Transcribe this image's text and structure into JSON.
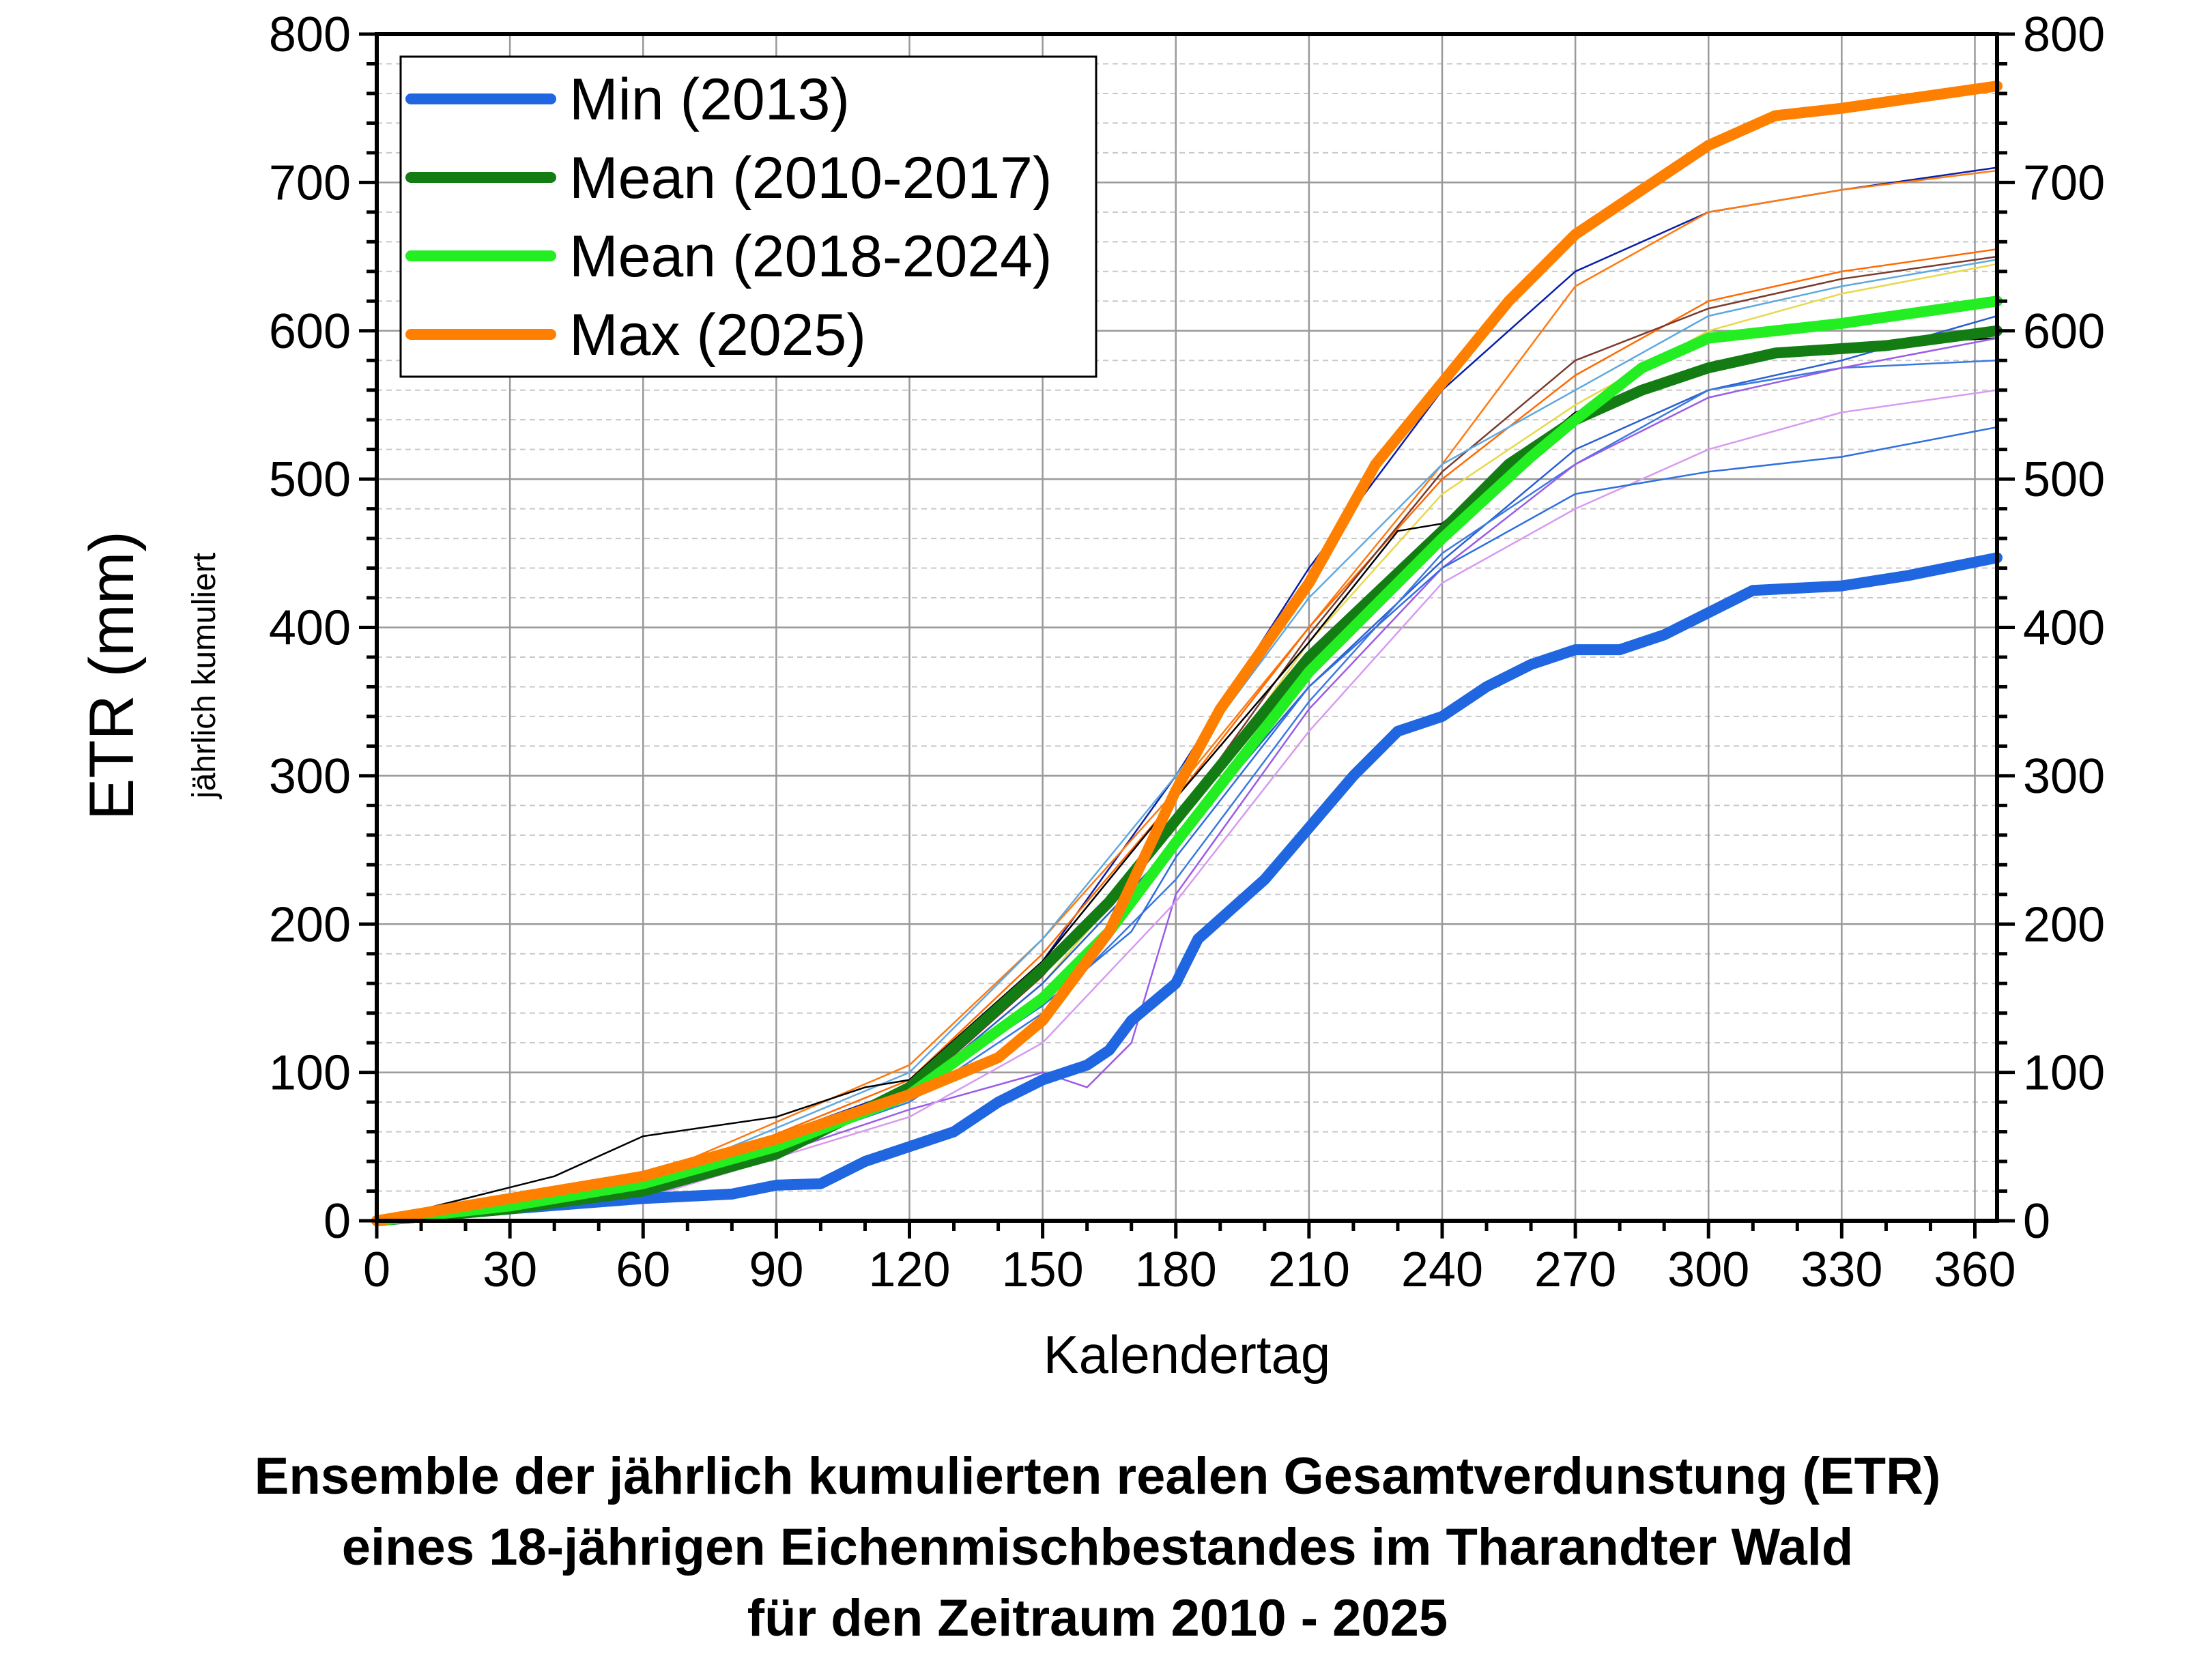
{
  "chart_data": {
    "type": "line",
    "title_lines": [
      "Ensemble der jährlich kumulierten realen Gesamtverdunstung (ETR)",
      "eines 18-jährigen Eichenmischbestandes im Tharandter Wald",
      "für den Zeitraum 2010 - 2025"
    ],
    "xlabel": "Kalendertag",
    "ylabel": "ETR (mm)",
    "ylabel_secondary": "jährlich kumuliert",
    "xlim": [
      0,
      365
    ],
    "ylim": [
      0,
      800
    ],
    "xticks": [
      0,
      30,
      60,
      90,
      120,
      150,
      180,
      210,
      240,
      270,
      300,
      330,
      360
    ],
    "yticks": [
      0,
      100,
      200,
      300,
      400,
      500,
      600,
      700,
      800
    ],
    "right_axis_labels": true,
    "grid": true,
    "legend_position": "top-left",
    "series": [
      {
        "name": "Min (2013)",
        "color": "#1f66e0",
        "highlight": true,
        "x": [
          0,
          30,
          60,
          80,
          90,
          100,
          110,
          120,
          130,
          140,
          150,
          160,
          165,
          170,
          180,
          185,
          200,
          210,
          220,
          230,
          240,
          250,
          260,
          270,
          280,
          290,
          300,
          310,
          330,
          345,
          365
        ],
        "y": [
          0,
          8,
          15,
          18,
          24,
          25,
          40,
          50,
          60,
          80,
          95,
          105,
          115,
          135,
          160,
          190,
          230,
          265,
          300,
          330,
          340,
          360,
          375,
          385,
          385,
          395,
          410,
          425,
          428,
          435,
          447
        ]
      },
      {
        "name": "Mean (2010-2017)",
        "color": "#137d13",
        "highlight": true,
        "x": [
          0,
          30,
          60,
          90,
          120,
          150,
          165,
          180,
          210,
          240,
          255,
          270,
          285,
          300,
          315,
          340,
          365
        ],
        "y": [
          0,
          8,
          20,
          45,
          90,
          170,
          215,
          270,
          380,
          465,
          510,
          540,
          560,
          575,
          585,
          590,
          600
        ]
      },
      {
        "name": "Mean (2018-2024)",
        "color": "#22ee22",
        "highlight": true,
        "x": [
          0,
          30,
          60,
          90,
          120,
          150,
          165,
          180,
          210,
          240,
          260,
          270,
          285,
          300,
          330,
          365
        ],
        "y": [
          0,
          10,
          25,
          50,
          85,
          150,
          195,
          255,
          370,
          460,
          515,
          540,
          575,
          595,
          605,
          620
        ]
      },
      {
        "name": "Max (2025)",
        "color": "#ff8000",
        "highlight": true,
        "x": [
          0,
          30,
          60,
          90,
          120,
          140,
          150,
          165,
          180,
          190,
          210,
          225,
          240,
          255,
          270,
          285,
          300,
          315,
          330,
          365
        ],
        "y": [
          0,
          15,
          30,
          55,
          85,
          110,
          135,
          195,
          290,
          345,
          430,
          510,
          565,
          620,
          665,
          695,
          725,
          745,
          750,
          765
        ]
      },
      {
        "color": "#0a1fa8",
        "x": [
          0,
          60,
          120,
          150,
          180,
          210,
          240,
          270,
          300,
          330,
          365
        ],
        "y": [
          0,
          25,
          90,
          175,
          300,
          440,
          560,
          640,
          680,
          695,
          710
        ]
      },
      {
        "color": "#ff7a10",
        "x": [
          0,
          60,
          120,
          150,
          180,
          210,
          240,
          270,
          300,
          330,
          365
        ],
        "y": [
          0,
          28,
          105,
          190,
          290,
          400,
          510,
          630,
          680,
          695,
          708
        ]
      },
      {
        "color": "#ff6a00",
        "x": [
          0,
          60,
          120,
          150,
          180,
          210,
          240,
          270,
          300,
          330,
          365
        ],
        "y": [
          0,
          22,
          95,
          180,
          285,
          400,
          500,
          570,
          620,
          640,
          655
        ]
      },
      {
        "color": "#7a3b2e",
        "x": [
          0,
          60,
          120,
          150,
          180,
          210,
          240,
          270,
          300,
          330,
          365
        ],
        "y": [
          0,
          20,
          85,
          165,
          270,
          395,
          505,
          580,
          615,
          635,
          650
        ]
      },
      {
        "color": "#5ea8e0",
        "x": [
          0,
          60,
          120,
          150,
          180,
          210,
          240,
          270,
          300,
          330,
          365
        ],
        "y": [
          0,
          25,
          100,
          190,
          300,
          420,
          510,
          560,
          610,
          630,
          648
        ]
      },
      {
        "color": "#e8d84a",
        "x": [
          0,
          60,
          120,
          150,
          180,
          210,
          240,
          270,
          300,
          330,
          365
        ],
        "y": [
          0,
          20,
          85,
          160,
          265,
          390,
          490,
          550,
          600,
          625,
          645
        ]
      },
      {
        "color": "#000000",
        "x": [
          0,
          40,
          60,
          90,
          110,
          120,
          150,
          180,
          210,
          230,
          240,
          270,
          300,
          330,
          365
        ],
        "y": [
          0,
          30,
          57,
          70,
          90,
          95,
          175,
          285,
          390,
          465,
          470,
          545,
          575,
          590,
          595
        ]
      },
      {
        "color": "#2a5fd0",
        "x": [
          0,
          60,
          120,
          150,
          180,
          210,
          240,
          270,
          300,
          330,
          365
        ],
        "y": [
          0,
          20,
          85,
          160,
          255,
          360,
          445,
          520,
          560,
          580,
          610
        ]
      },
      {
        "color": "#3a7ae0",
        "x": [
          0,
          60,
          120,
          150,
          180,
          210,
          240,
          270,
          300,
          330,
          365
        ],
        "y": [
          0,
          18,
          80,
          140,
          230,
          350,
          450,
          510,
          560,
          575,
          580
        ]
      },
      {
        "color": "#9a5ce8",
        "x": [
          0,
          60,
          120,
          150,
          160,
          170,
          180,
          210,
          240,
          270,
          300,
          330,
          365
        ],
        "y": [
          0,
          15,
          75,
          100,
          90,
          120,
          220,
          345,
          440,
          510,
          555,
          575,
          595
        ]
      },
      {
        "color": "#d79af0",
        "x": [
          0,
          60,
          120,
          150,
          180,
          210,
          240,
          270,
          300,
          330,
          365
        ],
        "y": [
          0,
          15,
          70,
          120,
          215,
          330,
          430,
          480,
          520,
          545,
          560
        ]
      },
      {
        "color": "#2f6fe0",
        "x": [
          0,
          60,
          120,
          150,
          170,
          180,
          210,
          240,
          270,
          300,
          330,
          365
        ],
        "y": [
          0,
          20,
          85,
          145,
          195,
          245,
          360,
          440,
          490,
          505,
          515,
          535
        ]
      }
    ]
  }
}
